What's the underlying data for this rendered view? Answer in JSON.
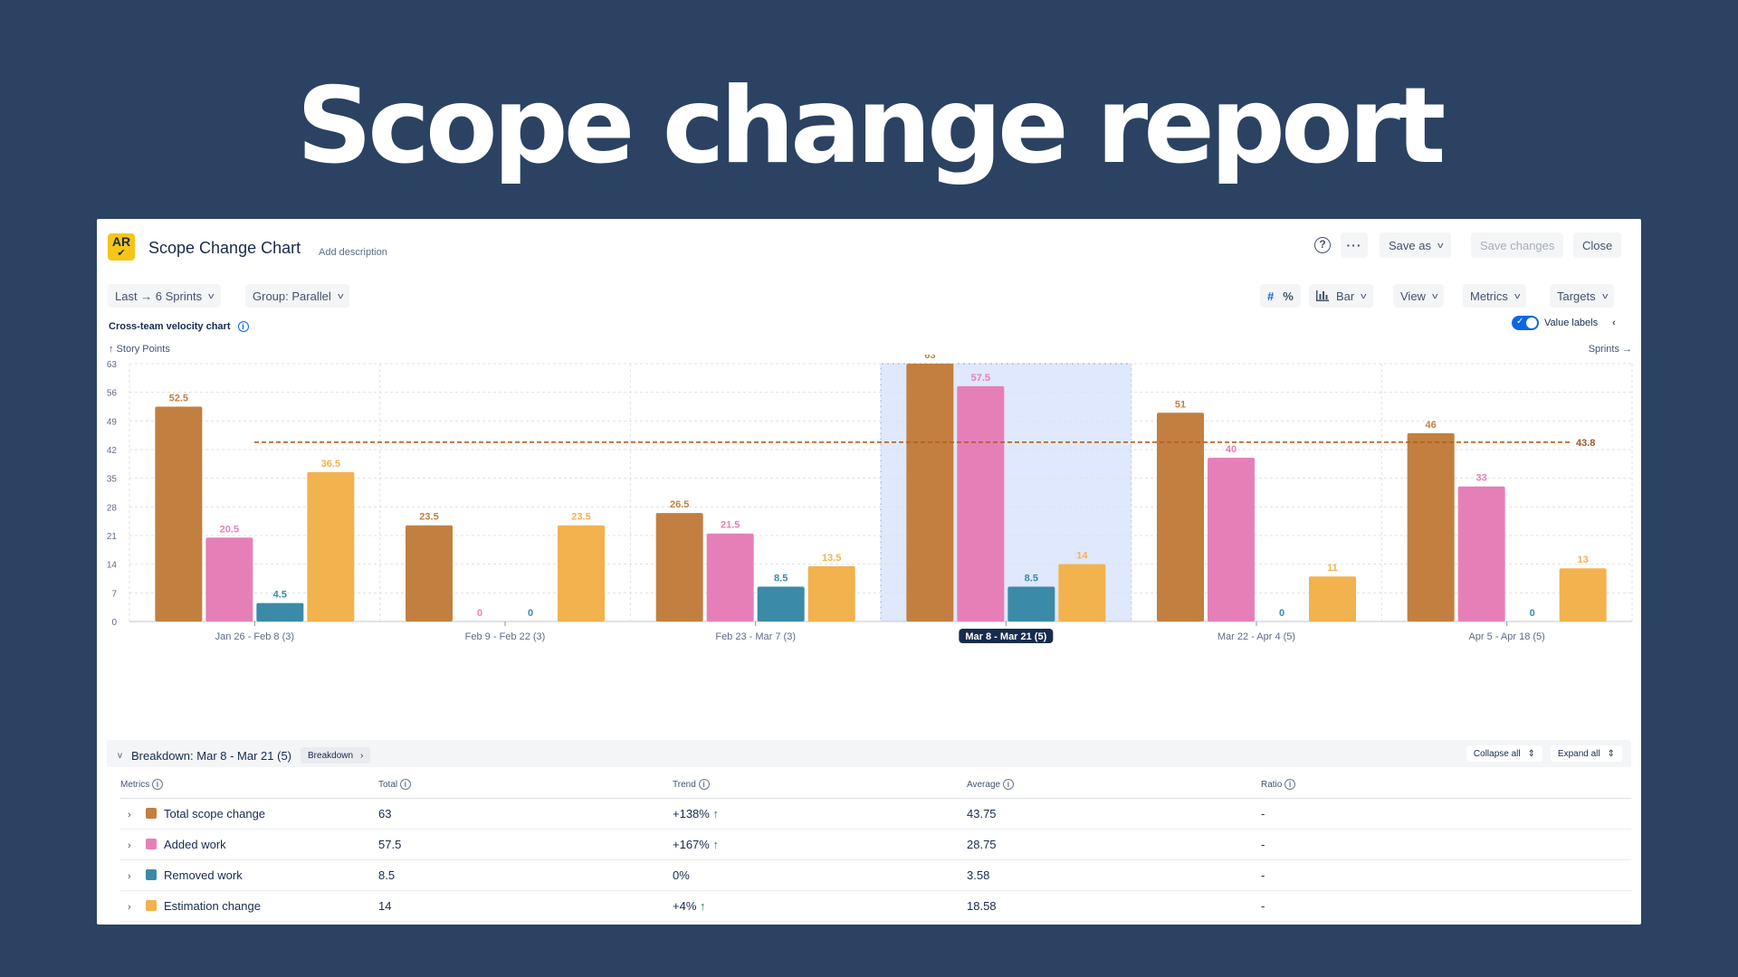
{
  "hero_title": "Scope change report",
  "header": {
    "logo_text": "AR",
    "title": "Scope Change Chart",
    "add_description": "Add description",
    "save_as": "Save as",
    "save_changes": "Save changes",
    "close": "Close",
    "help_icon": "help-icon",
    "more_icon": "more-icon"
  },
  "filters": {
    "range": "Last → 6 Sprints",
    "group": "Group: Parallel",
    "number_icon": "#",
    "percent_icon": "%",
    "chart_type": "Bar",
    "view": "View",
    "metrics": "Metrics",
    "targets": "Targets"
  },
  "chart_panel": {
    "title": "Cross-team velocity chart",
    "y_axis_label": "↑ Story Points",
    "x_axis_label": "Sprints →",
    "value_labels_toggle": "Value labels",
    "value_labels_on": true
  },
  "chart_data": {
    "type": "bar",
    "categories": [
      "Jan 26 - Feb 8 (3)",
      "Feb 9 - Feb 22 (3)",
      "Feb 23 - Mar 7 (3)",
      "Mar 8 - Mar 21 (5)",
      "Mar 22 - Apr 4 (5)",
      "Apr 5 - Apr 18 (5)"
    ],
    "selected_category": 3,
    "series": [
      {
        "color": "#c27f3f",
        "values": [
          52.5,
          23.5,
          26.5,
          63,
          51,
          46
        ]
      },
      {
        "color": "#e67fb8",
        "values": [
          20.5,
          0,
          21.5,
          57.5,
          40,
          33
        ]
      },
      {
        "color": "#3b8aa7",
        "values": [
          4.5,
          0,
          8.5,
          8.5,
          0,
          0
        ]
      },
      {
        "color": "#f2b24d",
        "values": [
          36.5,
          23.5,
          13.5,
          14,
          11,
          13
        ]
      }
    ],
    "y_ticks": [
      0,
      7,
      14,
      21,
      28,
      35,
      42,
      49,
      56,
      63
    ],
    "ylim": [
      0,
      63
    ],
    "average_line": 43.8,
    "average_line_color": "#b35e1e",
    "grid": true
  },
  "breakdown": {
    "title": "Breakdown: Mar 8 - Mar 21 (5)",
    "breakdown_button": "Breakdown",
    "collapse_all": "Collapse all",
    "expand_all": "Expand all",
    "columns": [
      "Metrics",
      "Total",
      "Trend",
      "Average",
      "Ratio"
    ],
    "rows": [
      {
        "metric": "Total scope change",
        "color": "#c27f3f",
        "total": "63",
        "trend": "+138%",
        "trend_up": true,
        "average": "43.75",
        "ratio": "-"
      },
      {
        "metric": "Added work",
        "color": "#e67fb8",
        "total": "57.5",
        "trend": "+167%",
        "trend_up": true,
        "average": "28.75",
        "ratio": "-"
      },
      {
        "metric": "Removed work",
        "color": "#3b8aa7",
        "total": "8.5",
        "trend": "0%",
        "trend_up": false,
        "average": "3.58",
        "ratio": "-"
      },
      {
        "metric": "Estimation change",
        "color": "#f2b24d",
        "total": "14",
        "trend": "+4%",
        "trend_up": true,
        "average": "18.58",
        "ratio": "-"
      }
    ]
  }
}
